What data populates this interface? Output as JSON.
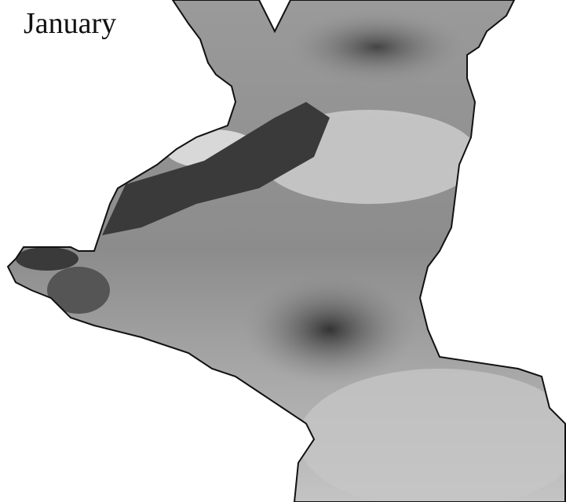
{
  "map": {
    "label": "January"
  }
}
